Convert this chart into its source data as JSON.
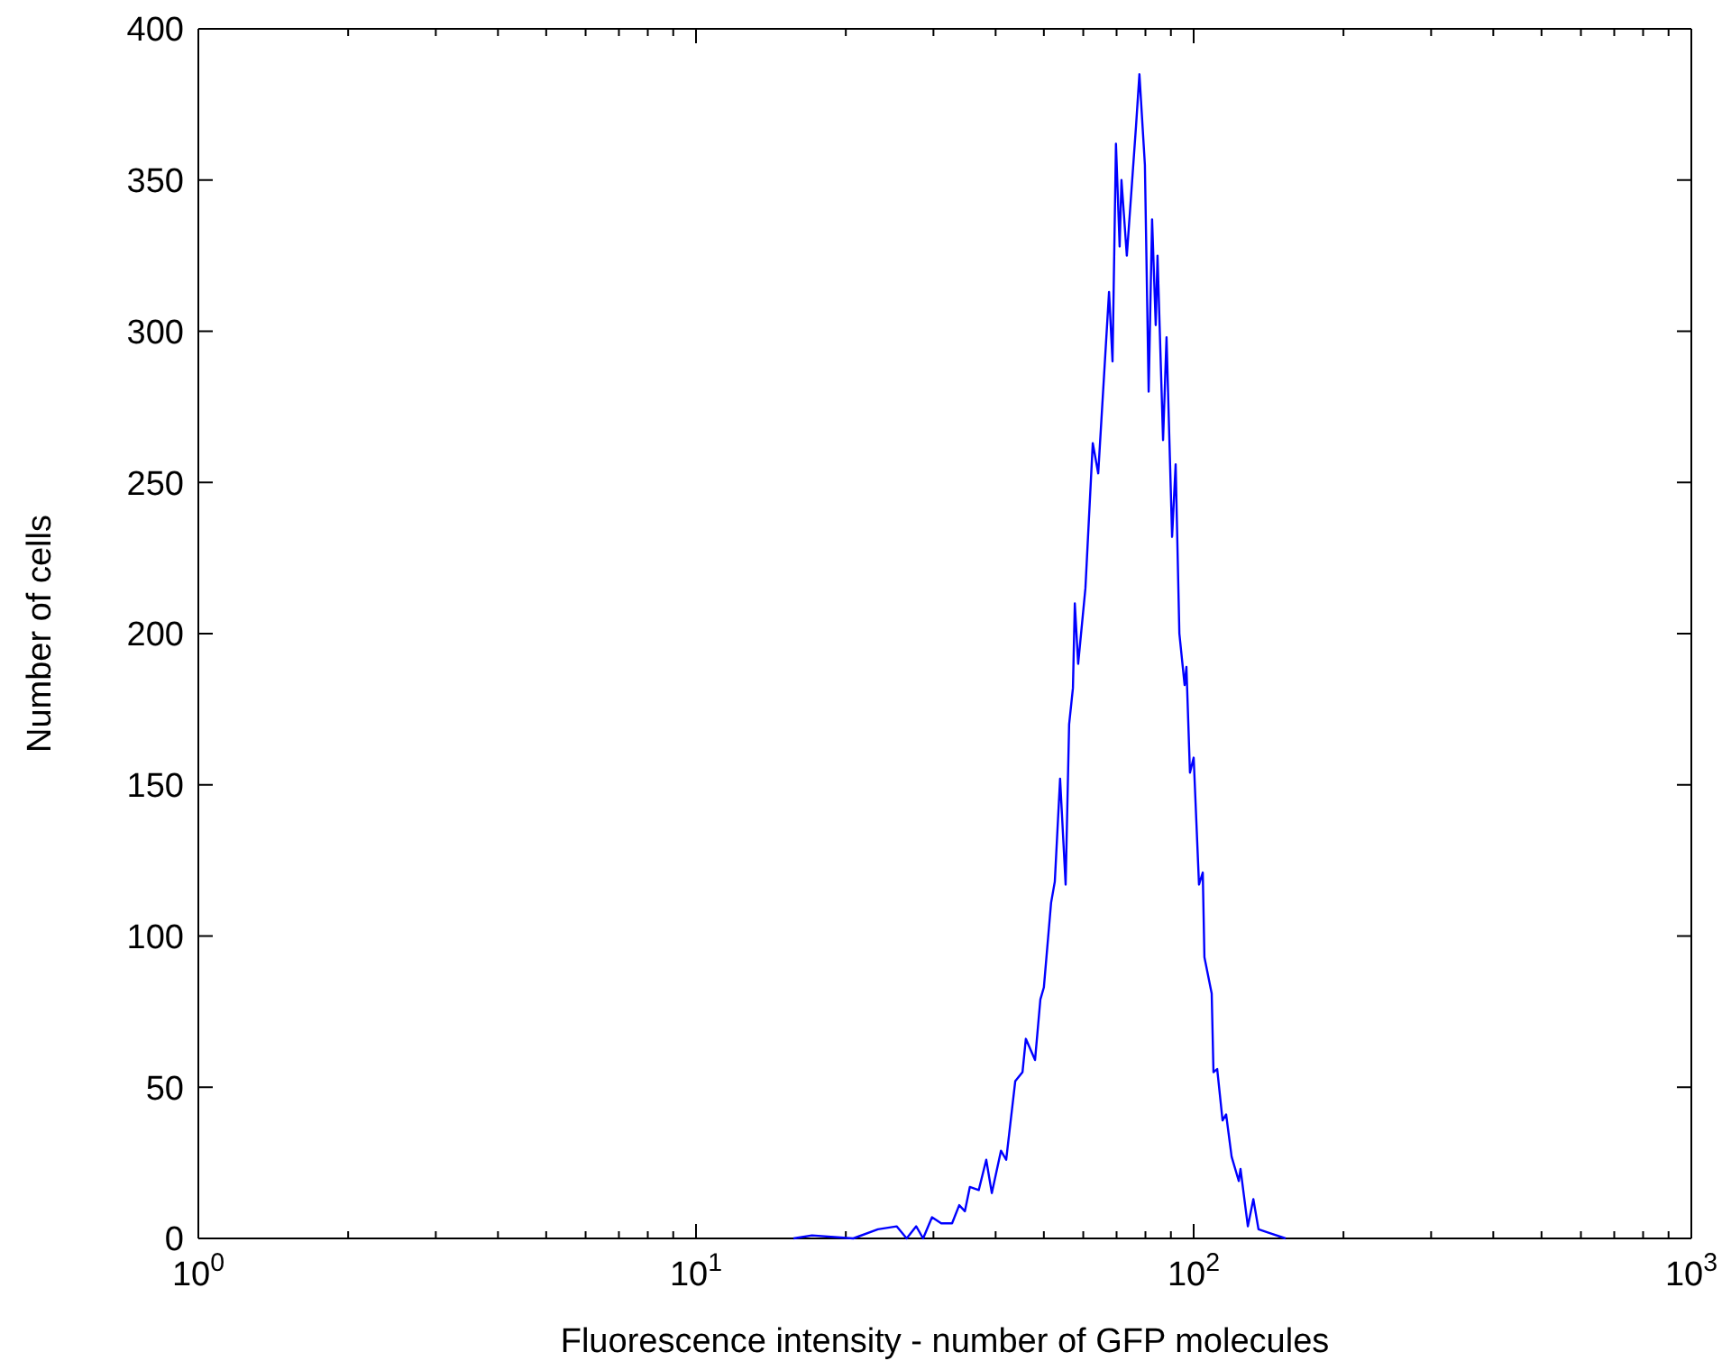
{
  "chart_data": {
    "type": "line",
    "xlabel": "Fluorescence intensity - number of GFP molecules",
    "ylabel": "Number of cells",
    "log": "x",
    "xlim": [
      1,
      1000
    ],
    "ylim": [
      0,
      400
    ],
    "xticks": [
      {
        "value": 1,
        "label": "10$^{0}$"
      },
      {
        "value": 2,
        "label": null
      },
      {
        "value": 3,
        "label": null
      },
      {
        "value": 4,
        "label": null
      },
      {
        "value": 5,
        "label": null
      },
      {
        "value": 6,
        "label": null
      },
      {
        "value": 7,
        "label": null
      },
      {
        "value": 8,
        "label": null
      },
      {
        "value": 9,
        "label": null
      },
      {
        "value": 10,
        "label": "10$^{1}$"
      },
      {
        "value": 20,
        "label": null
      },
      {
        "value": 30,
        "label": null
      },
      {
        "value": 40,
        "label": null
      },
      {
        "value": 50,
        "label": null
      },
      {
        "value": 60,
        "label": null
      },
      {
        "value": 70,
        "label": null
      },
      {
        "value": 80,
        "label": null
      },
      {
        "value": 90,
        "label": null
      },
      {
        "value": 100,
        "label": "10$^{2}$"
      },
      {
        "value": 200,
        "label": null
      },
      {
        "value": 300,
        "label": null
      },
      {
        "value": 400,
        "label": null
      },
      {
        "value": 500,
        "label": null
      },
      {
        "value": 600,
        "label": null
      },
      {
        "value": 700,
        "label": null
      },
      {
        "value": 800,
        "label": null
      },
      {
        "value": 900,
        "label": null
      },
      {
        "value": 1000,
        "label": "10$^{3}$"
      }
    ],
    "yticks": [
      0,
      50,
      100,
      150,
      200,
      250,
      300,
      350,
      400
    ],
    "grid": false,
    "marker": "none",
    "line_style": "solid",
    "series": [
      {
        "color": "#0000ff",
        "x": [
          15.7,
          17.1,
          20.7,
          23.2,
          25.3,
          26.5,
          27.7,
          28.6,
          29.8,
          31.1,
          32.7,
          33.8,
          34.7,
          35.5,
          37.0,
          38.3,
          39.3,
          41.0,
          42.0,
          43.8,
          45.3,
          46.0,
          48.0,
          49.2,
          50.0,
          51.7,
          52.6,
          53.9,
          55.3,
          56.2,
          57.2,
          57.7,
          58.6,
          60.6,
          62.7,
          64.3,
          67.6,
          68.7,
          69.8,
          71.0,
          71.6,
          73.4,
          76.6,
          77.8,
          79.8,
          81.2,
          82.5,
          83.9,
          84.6,
          86.8,
          88.2,
          90.5,
          92.0,
          93.6,
          95.9,
          96.7,
          98.3,
          100,
          102.5,
          104.3,
          105.1,
          108.7,
          109.6,
          111.5,
          114.3,
          116.2,
          119.2,
          123.2,
          124.2,
          128.5,
          131.8,
          135.0,
          140.9,
          153
        ],
        "values": [
          0,
          1,
          0,
          3,
          4,
          0,
          4,
          0,
          7,
          5,
          5,
          11,
          9,
          17,
          16,
          26,
          15,
          29,
          26,
          52,
          55,
          66,
          59,
          79,
          83,
          111,
          118,
          152,
          117,
          170,
          182,
          210,
          190,
          215,
          263,
          253,
          313,
          290,
          362,
          328,
          350,
          325,
          368,
          385,
          355,
          280,
          337,
          302,
          325,
          264,
          298,
          232,
          256,
          200,
          183,
          189,
          154,
          159,
          117,
          121,
          93,
          81,
          55,
          56,
          39,
          41,
          27,
          19,
          23,
          4,
          13,
          3,
          2,
          0
        ]
      }
    ]
  }
}
